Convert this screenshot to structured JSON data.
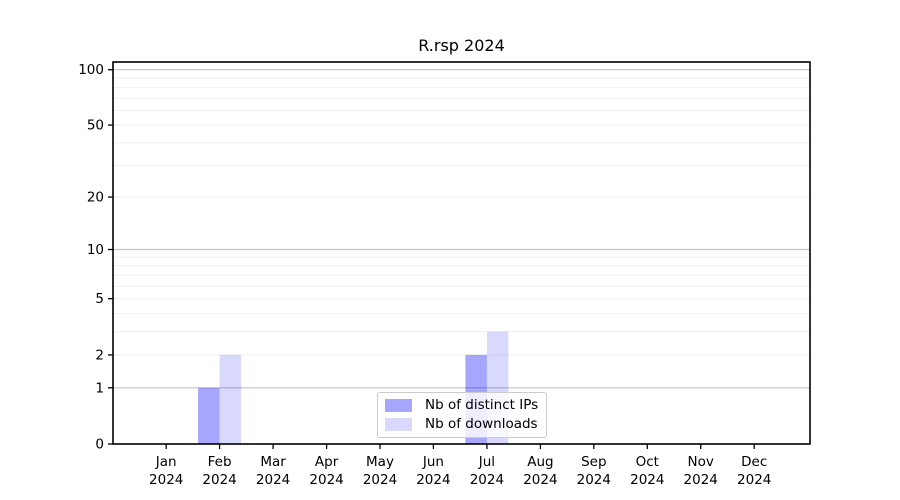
{
  "chart_data": {
    "type": "bar",
    "title": "R.rsp 2024",
    "year_label": "2024",
    "months": [
      "Jan",
      "Feb",
      "Mar",
      "Apr",
      "May",
      "Jun",
      "Jul",
      "Aug",
      "Sep",
      "Oct",
      "Nov",
      "Dec"
    ],
    "series": [
      {
        "name": "Nb of distinct IPs",
        "color": "#0000ff",
        "alpha": 0.35,
        "values": [
          0,
          1,
          0,
          0,
          0,
          0,
          2,
          0,
          0,
          0,
          0,
          0
        ]
      },
      {
        "name": "Nb of downloads",
        "color": "#0000ff",
        "alpha": 0.15,
        "values": [
          0,
          2,
          0,
          0,
          0,
          0,
          3,
          0,
          0,
          0,
          0,
          0
        ]
      }
    ],
    "yscale": "log1p",
    "ylim": [
      0,
      110
    ],
    "yticks_labeled": [
      0,
      1,
      2,
      5,
      10,
      20,
      50,
      100
    ],
    "gridlines_major": [
      1,
      10,
      100
    ],
    "gridlines_minor": [
      2,
      3,
      4,
      5,
      6,
      7,
      8,
      9,
      20,
      30,
      40,
      50,
      60,
      70,
      80,
      90
    ],
    "legend_position": "lower center",
    "grid_on": true,
    "colors": {
      "grid_major": "#c3c3c3",
      "grid_minor": "#eeeeee",
      "spine": "#000000",
      "tick": "#000000",
      "text": "#000000",
      "legend_border": "#cccccc"
    }
  }
}
